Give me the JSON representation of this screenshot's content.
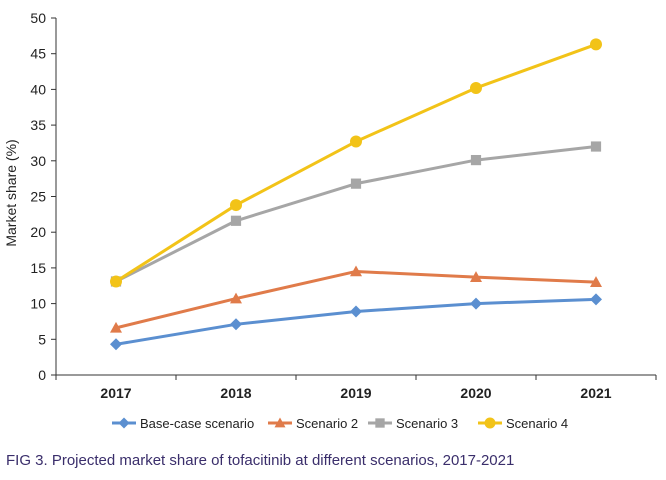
{
  "caption": "FIG 3.  Projected market share of tofacitinib at different scenarios, 2017-2021",
  "chart_data": {
    "type": "line",
    "title": "",
    "xlabel": "",
    "ylabel": "Market share (%)",
    "categories": [
      "2017",
      "2018",
      "2019",
      "2020",
      "2021"
    ],
    "ylim": [
      0,
      50
    ],
    "yticks": [
      0,
      5,
      10,
      15,
      20,
      25,
      30,
      35,
      40,
      45,
      50
    ],
    "grid": false,
    "legend_position": "bottom",
    "series": [
      {
        "name": "Base-case scenario",
        "values": [
          4.3,
          7.1,
          8.9,
          10.0,
          10.6
        ],
        "color": "#5b8fd0",
        "marker": "diamond"
      },
      {
        "name": "Scenario 2",
        "values": [
          6.6,
          10.7,
          14.5,
          13.7,
          13.0
        ],
        "color": "#e07b4a",
        "marker": "triangle"
      },
      {
        "name": "Scenario 3",
        "values": [
          13.1,
          21.6,
          26.8,
          30.1,
          32.0
        ],
        "color": "#a6a6a6",
        "marker": "square"
      },
      {
        "name": "Scenario 4",
        "values": [
          13.1,
          23.8,
          32.7,
          40.2,
          46.3
        ],
        "color": "#f2c318",
        "marker": "circle"
      }
    ]
  }
}
